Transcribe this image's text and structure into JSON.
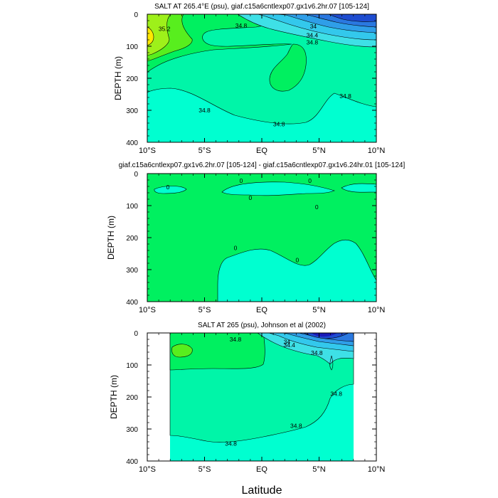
{
  "figure": {
    "shared_xlabel": "Latitude"
  },
  "chart_data": [
    {
      "type": "contour",
      "title": "SALT AT 265.4°E (psu), giaf.c15a6cntlexp07.gx1v6.2hr.07 [105-124]",
      "xlabel": "",
      "ylabel": "DEPTH (m)",
      "x_tick_labels": [
        "10°S",
        "5°S",
        "EQ",
        "5°N",
        "10°N"
      ],
      "x_tick_values": [
        -10,
        -5,
        0,
        5,
        10
      ],
      "y_tick_labels": [
        "0",
        "100",
        "200",
        "300",
        "400"
      ],
      "y_tick_values": [
        0,
        100,
        200,
        300,
        400
      ],
      "xlim": [
        -10,
        10
      ],
      "ylim": [
        400,
        0
      ],
      "contour_labels": [
        {
          "text": "35.2",
          "lat": -8.5,
          "depth": 45
        },
        {
          "text": "34.8",
          "lat": -1.8,
          "depth": 35
        },
        {
          "text": "34",
          "lat": 4.5,
          "depth": 38
        },
        {
          "text": "34.4",
          "lat": 4.4,
          "depth": 66
        },
        {
          "text": "34.8",
          "lat": 4.4,
          "depth": 88
        },
        {
          "text": "34.8",
          "lat": -5,
          "depth": 300
        },
        {
          "text": "34.8",
          "lat": 1.5,
          "depth": 343
        },
        {
          "text": "34.8",
          "lat": 7.3,
          "depth": 255
        }
      ]
    },
    {
      "type": "contour",
      "title": "giaf.c15a6cntlexp07.gx1v6.2hr.07 [105-124] - giaf.c15a6cntlexp07.gx1v6.24hr.01 [105-124]",
      "xlabel": "",
      "ylabel": "DEPTH (m)",
      "x_tick_labels": [
        "10°S",
        "5°S",
        "EQ",
        "5°N",
        "10°N"
      ],
      "x_tick_values": [
        -10,
        -5,
        0,
        5,
        10
      ],
      "y_tick_labels": [
        "0",
        "100",
        "200",
        "300",
        "400"
      ],
      "y_tick_values": [
        0,
        100,
        200,
        300,
        400
      ],
      "xlim": [
        -10,
        10
      ],
      "ylim": [
        400,
        0
      ],
      "contour_labels": [
        {
          "text": "0",
          "lat": -8.2,
          "depth": 42
        },
        {
          "text": "0",
          "lat": -1.8,
          "depth": 22
        },
        {
          "text": "0",
          "lat": 4.2,
          "depth": 22
        },
        {
          "text": "0",
          "lat": -1,
          "depth": 76
        },
        {
          "text": "0",
          "lat": 4.8,
          "depth": 104
        },
        {
          "text": "0",
          "lat": -2.3,
          "depth": 232
        },
        {
          "text": "0",
          "lat": 3.1,
          "depth": 270
        }
      ]
    },
    {
      "type": "contour",
      "title": "SALT AT 265 (psu), Johnson et al (2002)",
      "xlabel": "Latitude",
      "ylabel": "DEPTH (m)",
      "x_tick_labels": [
        "10°S",
        "5°S",
        "EQ",
        "5°N",
        "10°N"
      ],
      "x_tick_values": [
        -10,
        -5,
        0,
        5,
        10
      ],
      "y_tick_labels": [
        "0",
        "100",
        "200",
        "300",
        "400"
      ],
      "y_tick_values": [
        0,
        100,
        200,
        300,
        400
      ],
      "xlim": [
        -10,
        10
      ],
      "ylim": [
        400,
        0
      ],
      "data_extent_lat": [
        -8,
        8
      ],
      "contour_labels": [
        {
          "text": "34.8",
          "lat": -2.3,
          "depth": 20
        },
        {
          "text": "34",
          "lat": 2.2,
          "depth": 28
        },
        {
          "text": "34.4",
          "lat": 2.4,
          "depth": 38
        },
        {
          "text": "34.8",
          "lat": 4.8,
          "depth": 62
        },
        {
          "text": "34.8",
          "lat": 6.5,
          "depth": 190
        },
        {
          "text": "34.8",
          "lat": 3,
          "depth": 290
        },
        {
          "text": "34.8",
          "lat": -2.7,
          "depth": 345
        }
      ]
    }
  ]
}
